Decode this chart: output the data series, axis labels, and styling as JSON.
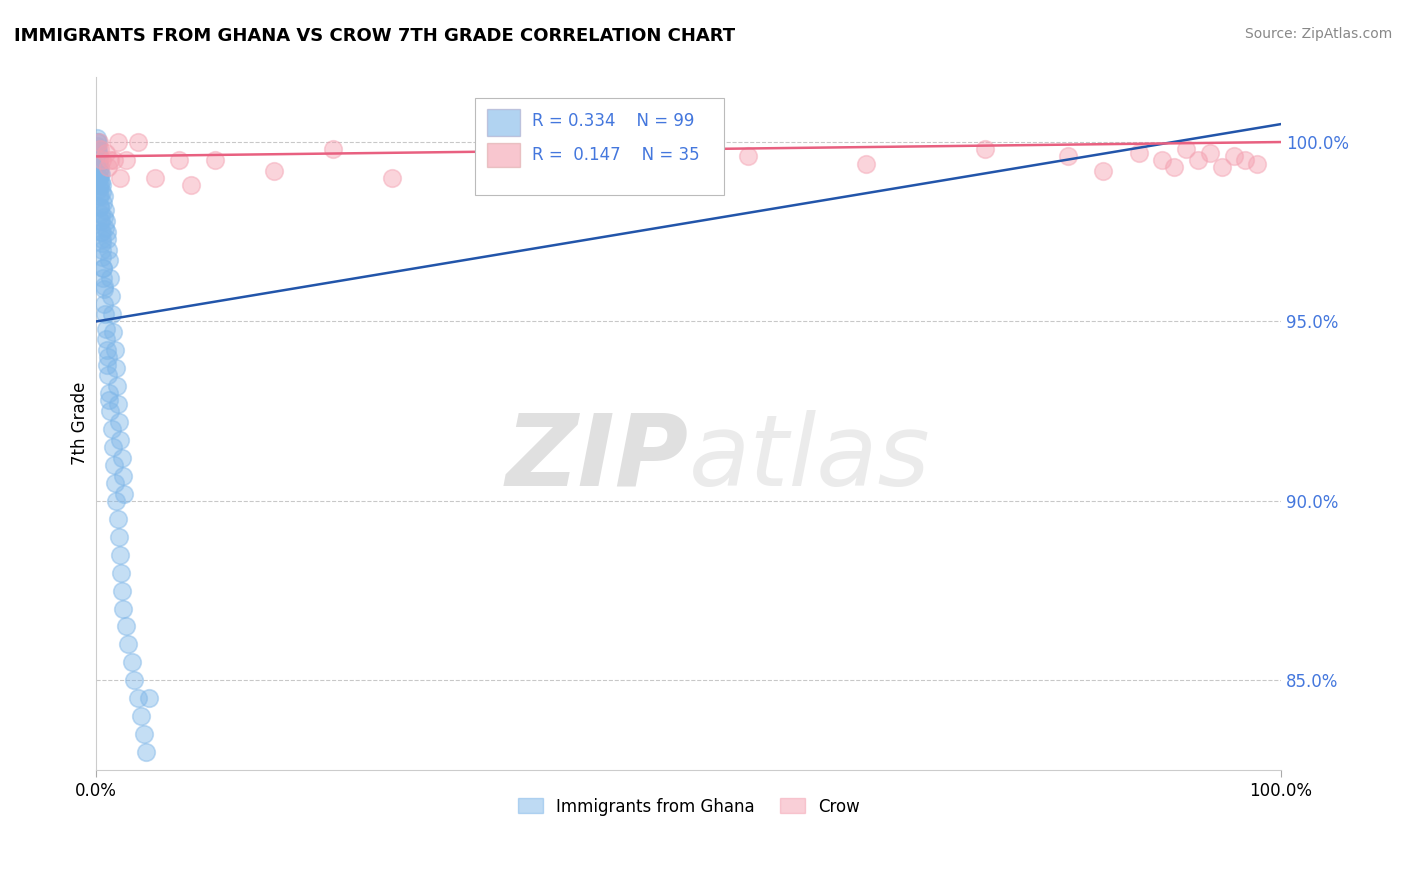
{
  "title": "IMMIGRANTS FROM GHANA VS CROW 7TH GRADE CORRELATION CHART",
  "source": "Source: ZipAtlas.com",
  "ylabel": "7th Grade",
  "legend_blue_label": "Immigrants from Ghana",
  "legend_pink_label": "Crow",
  "blue_R": 0.334,
  "blue_N": 99,
  "pink_R": 0.147,
  "pink_N": 35,
  "blue_color": "#7EB6E8",
  "pink_color": "#F4A0B0",
  "blue_line_color": "#2255AA",
  "pink_line_color": "#E86080",
  "ytick_labels": [
    "85.0%",
    "90.0%",
    "95.0%",
    "100.0%"
  ],
  "ytick_values": [
    85.0,
    90.0,
    95.0,
    100.0
  ],
  "xlim": [
    0.0,
    100.0
  ],
  "ylim": [
    82.5,
    101.8
  ],
  "watermark_zip": "ZIP",
  "watermark_atlas": "atlas",
  "blue_points_x": [
    0.05,
    0.05,
    0.05,
    0.1,
    0.1,
    0.1,
    0.1,
    0.15,
    0.15,
    0.15,
    0.2,
    0.2,
    0.2,
    0.2,
    0.25,
    0.25,
    0.25,
    0.3,
    0.3,
    0.3,
    0.35,
    0.35,
    0.4,
    0.4,
    0.4,
    0.45,
    0.45,
    0.5,
    0.5,
    0.5,
    0.55,
    0.6,
    0.6,
    0.65,
    0.7,
    0.7,
    0.75,
    0.8,
    0.85,
    0.9,
    0.95,
    1.0,
    1.0,
    1.1,
    1.1,
    1.2,
    1.3,
    1.4,
    1.5,
    1.6,
    1.7,
    1.8,
    1.9,
    2.0,
    2.1,
    2.2,
    2.3,
    2.5,
    2.7,
    3.0,
    3.2,
    3.5,
    3.8,
    4.0,
    4.2,
    4.5,
    0.08,
    0.12,
    0.18,
    0.22,
    0.28,
    0.32,
    0.38,
    0.42,
    0.48,
    0.52,
    0.58,
    0.62,
    0.68,
    0.72,
    0.78,
    0.82,
    0.88,
    0.92,
    0.98,
    1.05,
    1.15,
    1.25,
    1.35,
    1.45,
    1.55,
    1.65,
    1.75,
    1.85,
    1.95,
    2.05,
    2.15,
    2.25,
    2.35
  ],
  "blue_points_y": [
    99.8,
    100.1,
    99.5,
    99.9,
    100.0,
    99.3,
    99.6,
    99.7,
    99.4,
    100.0,
    99.2,
    99.5,
    98.8,
    99.0,
    98.5,
    99.0,
    98.7,
    98.2,
    98.5,
    98.8,
    97.8,
    98.2,
    97.5,
    97.8,
    98.0,
    97.2,
    97.5,
    97.0,
    97.3,
    96.8,
    96.5,
    96.2,
    96.5,
    95.9,
    95.5,
    96.0,
    95.2,
    94.8,
    94.5,
    94.2,
    93.8,
    93.5,
    94.0,
    93.0,
    92.8,
    92.5,
    92.0,
    91.5,
    91.0,
    90.5,
    90.0,
    89.5,
    89.0,
    88.5,
    88.0,
    87.5,
    87.0,
    86.5,
    86.0,
    85.5,
    85.0,
    84.5,
    84.0,
    83.5,
    83.0,
    84.5,
    99.7,
    99.8,
    99.4,
    99.6,
    99.1,
    99.3,
    98.9,
    99.1,
    98.6,
    98.8,
    98.3,
    98.5,
    97.9,
    98.1,
    97.6,
    97.8,
    97.3,
    97.5,
    97.0,
    96.7,
    96.2,
    95.7,
    95.2,
    94.7,
    94.2,
    93.7,
    93.2,
    92.7,
    92.2,
    91.7,
    91.2,
    90.7,
    90.2
  ],
  "pink_points_x": [
    0.2,
    0.3,
    0.5,
    0.8,
    1.0,
    1.2,
    1.5,
    1.8,
    2.0,
    2.5,
    3.5,
    5.0,
    7.0,
    8.0,
    10.0,
    15.0,
    20.0,
    25.0,
    35.0,
    45.0,
    55.0,
    65.0,
    75.0,
    82.0,
    85.0,
    88.0,
    90.0,
    91.0,
    92.0,
    93.0,
    94.0,
    95.0,
    96.0,
    97.0,
    98.0
  ],
  "pink_points_y": [
    100.0,
    99.8,
    99.5,
    99.7,
    99.3,
    99.5,
    99.5,
    100.0,
    99.0,
    99.5,
    100.0,
    99.0,
    99.5,
    98.8,
    99.5,
    99.2,
    99.8,
    99.0,
    99.5,
    99.2,
    99.6,
    99.4,
    99.8,
    99.6,
    99.2,
    99.7,
    99.5,
    99.3,
    99.8,
    99.5,
    99.7,
    99.3,
    99.6,
    99.5,
    99.4
  ],
  "blue_trend_x0": 0.0,
  "blue_trend_x1": 100.0,
  "blue_trend_y0": 95.0,
  "blue_trend_y1": 100.5,
  "pink_trend_x0": 0.0,
  "pink_trend_x1": 100.0,
  "pink_trend_y0": 99.6,
  "pink_trend_y1": 100.0
}
